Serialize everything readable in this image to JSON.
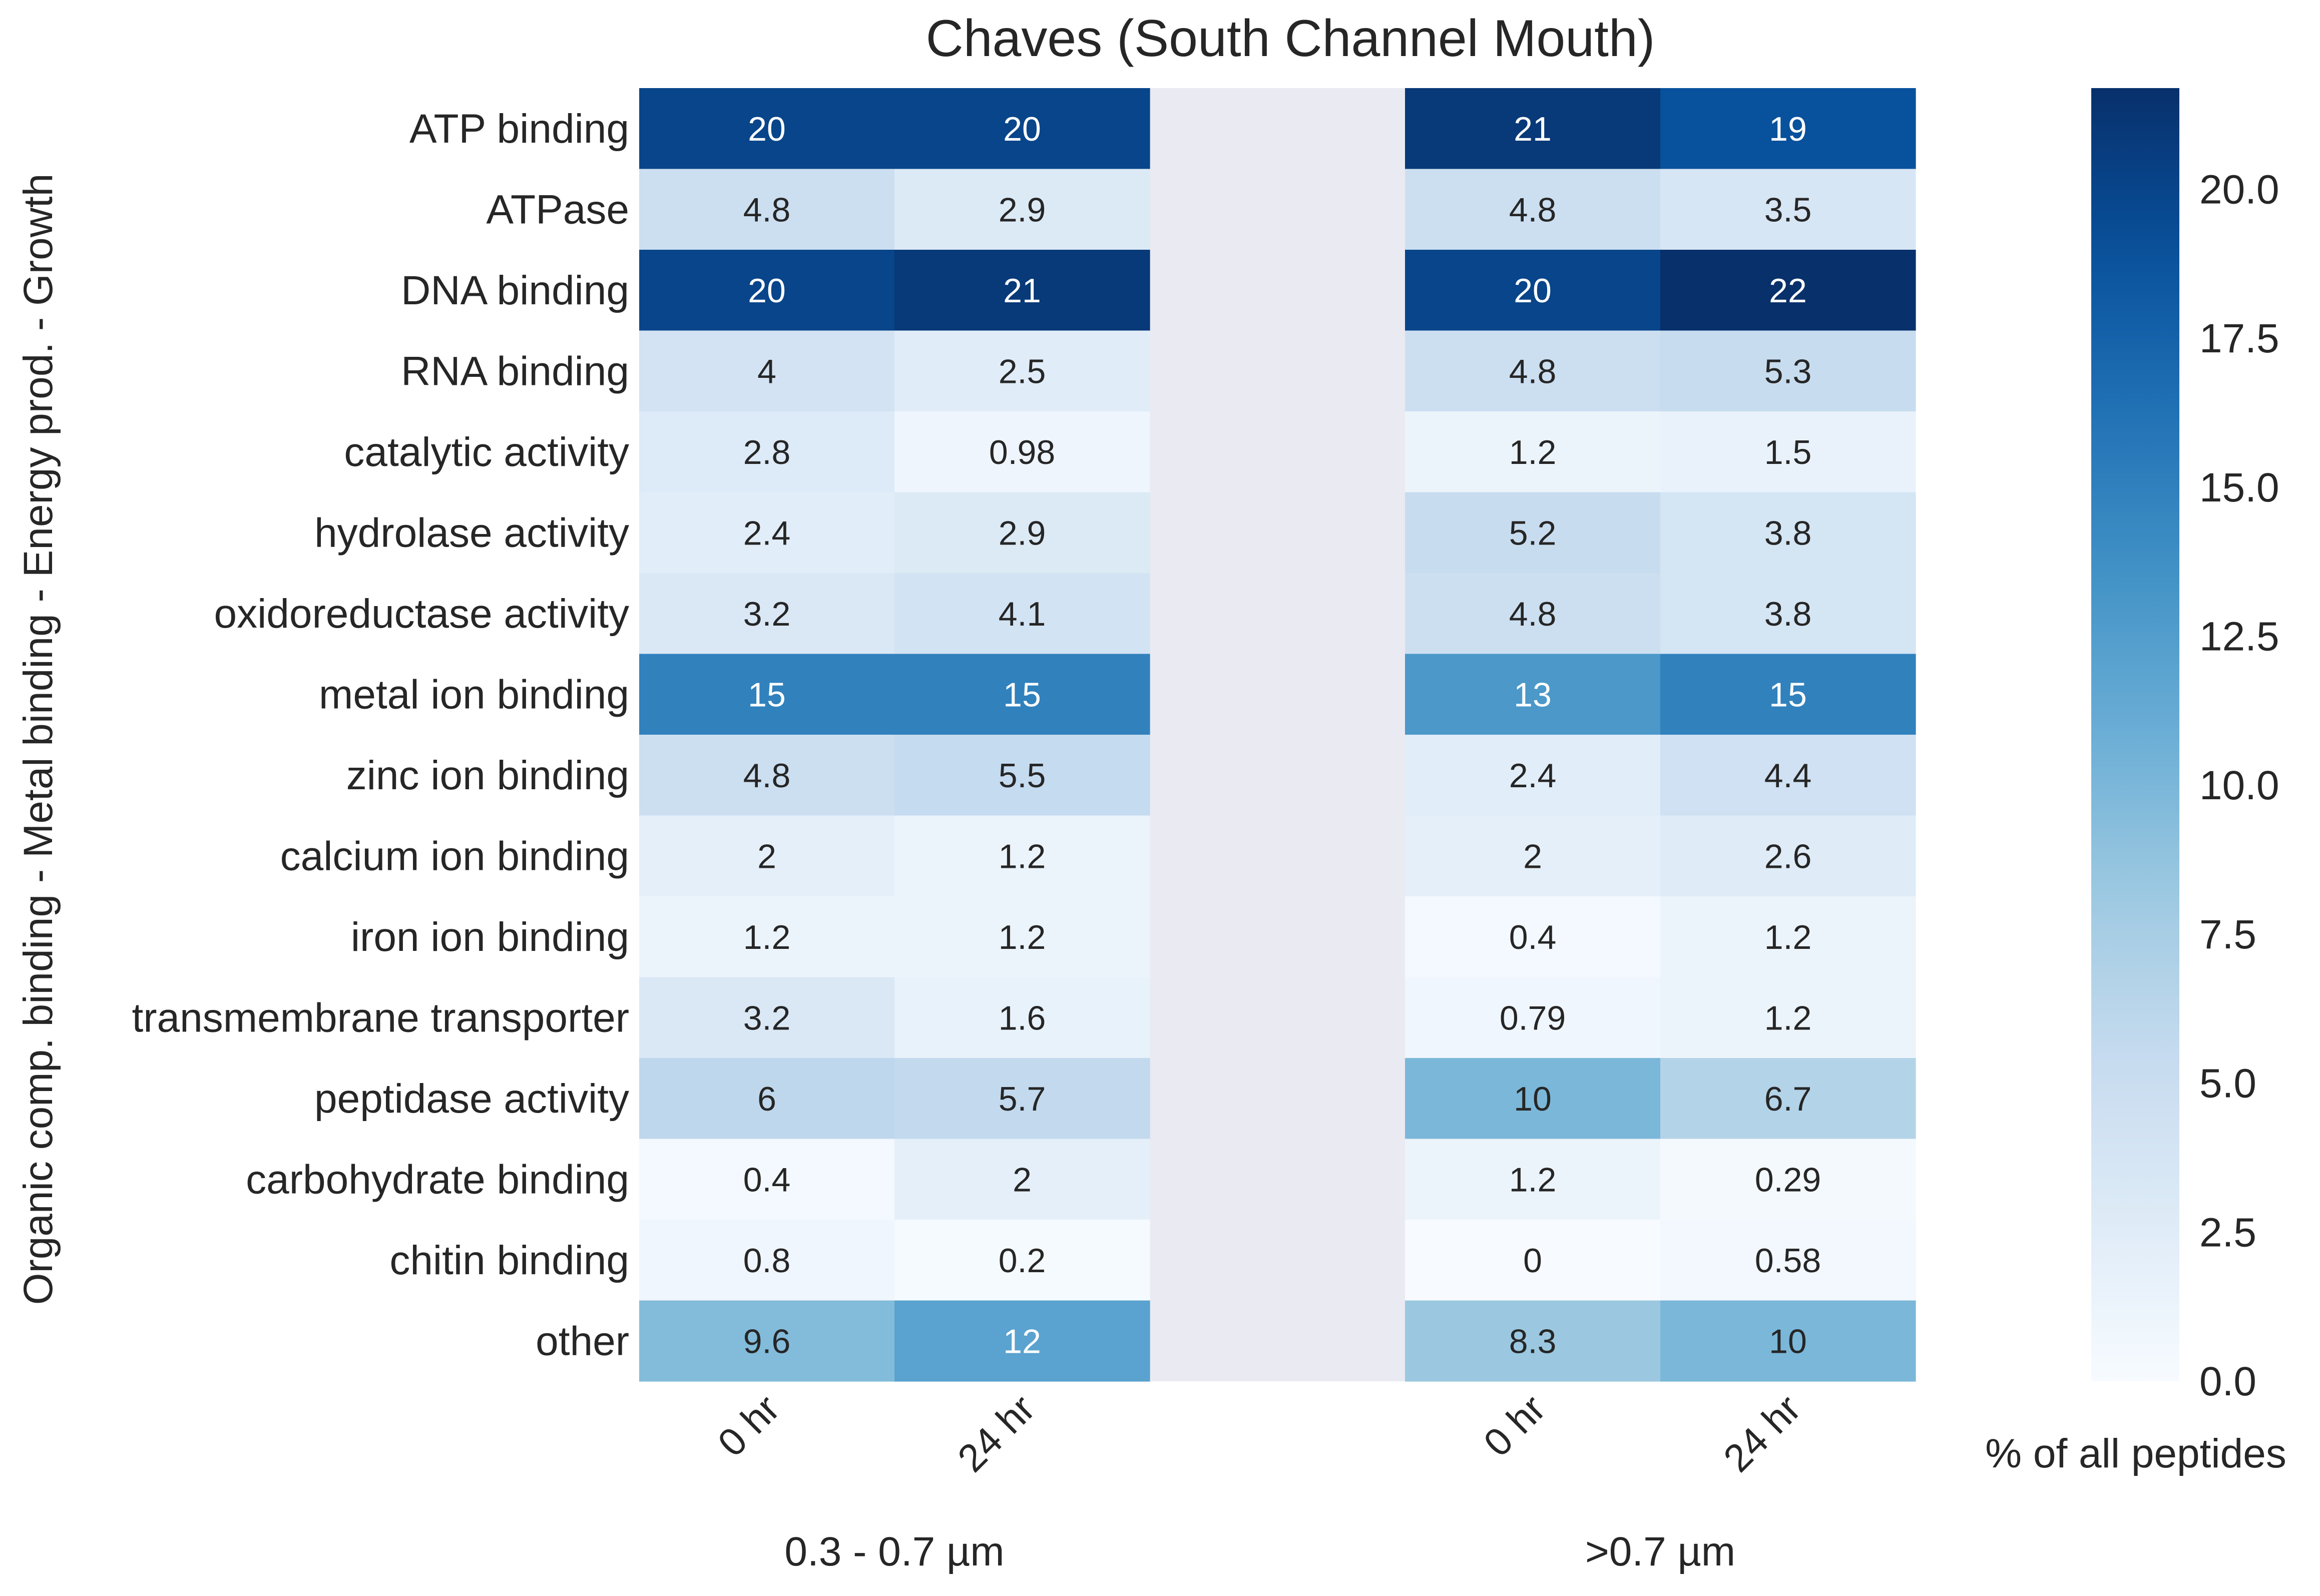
{
  "chart_data": {
    "type": "heatmap",
    "title": "Chaves (South Channel Mouth)",
    "ylabel": "Organic comp. binding - Metal binding - Energy prod. - Growth",
    "rows": [
      "ATP binding",
      "ATPase",
      "DNA binding",
      "RNA binding",
      "catalytic activity",
      "hydrolase activity",
      "oxidoreductase activity",
      "metal ion binding",
      "zinc ion binding",
      "calcium ion binding",
      "iron ion binding",
      "transmembrane transporter",
      "peptidase activity",
      "carbohydrate binding",
      "chitin binding",
      "other"
    ],
    "groups": [
      {
        "name": "0.3 - 0.7 µm",
        "columns": [
          {
            "label": "0 hr",
            "values": [
              20,
              4.8,
              20,
              4,
              2.8,
              2.4,
              3.2,
              15,
              4.8,
              2,
              1.2,
              3.2,
              6,
              0.4,
              0.8,
              9.6
            ],
            "labels": [
              "20",
              "4.8",
              "20",
              "4",
              "2.8",
              "2.4",
              "3.2",
              "15",
              "4.8",
              "2",
              "1.2",
              "3.2",
              "6",
              "0.4",
              "0.8",
              "9.6"
            ]
          },
          {
            "label": "24 hr",
            "values": [
              20,
              2.9,
              21,
              2.5,
              0.98,
              2.9,
              4.1,
              15,
              5.5,
              1.2,
              1.2,
              1.6,
              5.7,
              2,
              0.2,
              12
            ],
            "labels": [
              "20",
              "2.9",
              "21",
              "2.5",
              "0.98",
              "2.9",
              "4.1",
              "15",
              "5.5",
              "1.2",
              "1.2",
              "1.6",
              "5.7",
              "2",
              "0.2",
              "12"
            ]
          }
        ]
      },
      {
        "name": ">0.7 µm",
        "columns": [
          {
            "label": "0 hr",
            "values": [
              21,
              4.8,
              20,
              4.8,
              1.2,
              5.2,
              4.8,
              13,
              2.4,
              2,
              0.4,
              0.79,
              10,
              1.2,
              0,
              8.3
            ],
            "labels": [
              "21",
              "4.8",
              "20",
              "4.8",
              "1.2",
              "5.2",
              "4.8",
              "13",
              "2.4",
              "2",
              "0.4",
              "0.79",
              "10",
              "1.2",
              "0",
              "8.3"
            ]
          },
          {
            "label": "24 hr",
            "values": [
              19,
              3.5,
              22,
              5.3,
              1.5,
              3.8,
              3.8,
              15,
              4.4,
              2.6,
              1.2,
              1.2,
              6.7,
              0.29,
              0.58,
              10
            ],
            "labels": [
              "19",
              "3.5",
              "22",
              "5.3",
              "1.5",
              "3.8",
              "3.8",
              "15",
              "4.4",
              "2.6",
              "1.2",
              "1.2",
              "6.7",
              "0.29",
              "0.58",
              "10"
            ]
          }
        ]
      }
    ],
    "colorbar": {
      "label": "% of all peptides",
      "vmin": 0,
      "vmax": 21.7,
      "ticks": [
        0.0,
        2.5,
        5.0,
        7.5,
        10.0,
        12.5,
        15.0,
        17.5,
        20.0
      ],
      "tick_labels": [
        "0.0",
        "2.5",
        "5.0",
        "7.5",
        "10.0",
        "12.5",
        "15.0",
        "17.5",
        "20.0"
      ],
      "colormap": "Blues"
    },
    "gap_color": "#eaeaf2"
  }
}
